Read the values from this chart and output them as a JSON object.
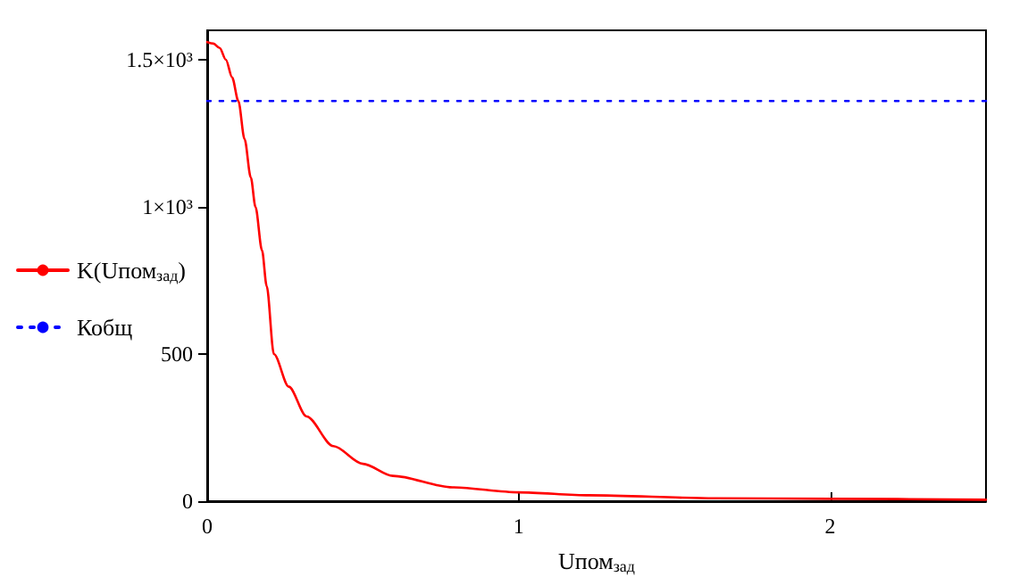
{
  "chart_data": {
    "type": "line",
    "xlabel": "Uпом$_{зад}$",
    "xlim": [
      0,
      2.5
    ],
    "xticks": [
      0,
      1,
      2
    ],
    "ylim": [
      0,
      1600
    ],
    "yticks": [
      0,
      500,
      {
        "value": 1000,
        "label": "1×10³"
      },
      {
        "value": 1500,
        "label": "1.5×10³"
      }
    ],
    "grid": false,
    "legend": "left",
    "marker": "none",
    "series": [
      {
        "name": "K(Uпом$_{зад}$)",
        "color": "#ff0000",
        "line_style": "solid",
        "x": [
          0,
          0.02,
          0.04,
          0.06,
          0.08,
          0.1,
          0.12,
          0.14,
          0.155,
          0.176,
          0.191,
          0.214,
          0.262,
          0.319,
          0.405,
          0.5,
          0.596,
          0.787,
          1,
          1.226,
          1.63,
          2,
          2.5
        ],
        "values": [
          1560,
          1555,
          1540,
          1500,
          1440,
          1360,
          1230,
          1100,
          1000,
          852,
          731,
          500,
          389,
          288,
          187,
          127,
          86,
          47,
          30,
          20,
          10,
          8,
          5
        ]
      },
      {
        "name": "Кобщ",
        "color": "#0000ff",
        "line_style": "dotted",
        "x": [
          0,
          2.5
        ],
        "values": [
          1360,
          1360
        ]
      }
    ]
  }
}
